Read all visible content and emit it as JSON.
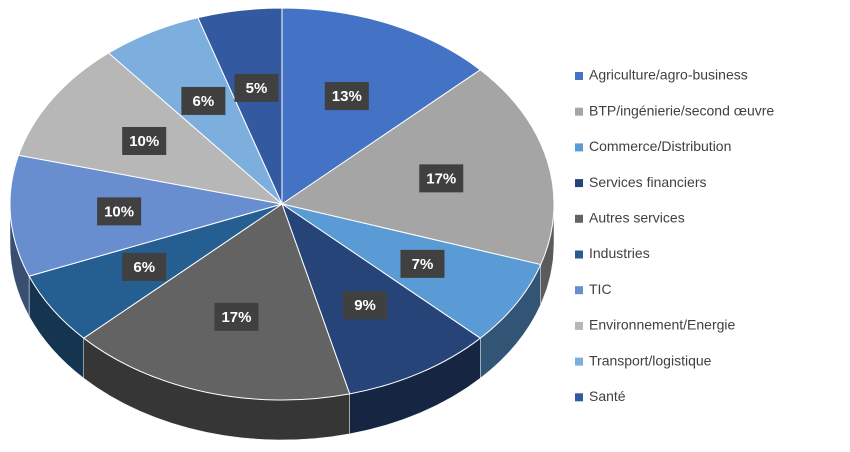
{
  "chart_data": {
    "type": "pie",
    "categories": [
      "Agriculture/agro-business",
      "BTP/ingénierie/second œuvre",
      "Commerce/Distribution",
      "Services financiers",
      "Autres services",
      "Industries",
      "TIC",
      "Environnement/Energie",
      "Transport/logistique",
      "Santé"
    ],
    "values": [
      13,
      17,
      7,
      9,
      17,
      6,
      10,
      10,
      6,
      5
    ],
    "value_labels": [
      "13%",
      "17%",
      "7%",
      "9%",
      "17%",
      "6%",
      "10%",
      "10%",
      "6%",
      "5%"
    ],
    "colors": [
      "#4472c4",
      "#a5a5a5",
      "#5b9bd5",
      "#264478",
      "#636363",
      "#255e91",
      "#698ed0",
      "#b7b7b7",
      "#7cafdd",
      "#335aa1"
    ],
    "legend": "right"
  }
}
